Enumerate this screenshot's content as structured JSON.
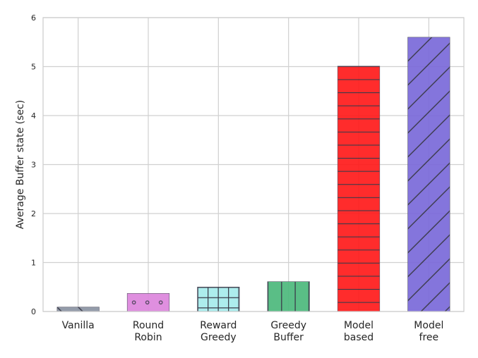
{
  "chart_data": {
    "type": "bar",
    "title": "",
    "xlabel": "",
    "ylabel": "Average Buffer state (sec)",
    "ylim": [
      0,
      6
    ],
    "yticks": [
      "0",
      "1",
      "2",
      "3",
      "4",
      "5",
      "6"
    ],
    "grid": true,
    "categories": [
      [
        "Vanilla"
      ],
      [
        "Round",
        "Robin"
      ],
      [
        "Reward",
        "Greedy"
      ],
      [
        "Greedy",
        "Buffer"
      ],
      [
        "Model",
        "based"
      ],
      [
        "Model",
        "free"
      ]
    ],
    "values": [
      0.09,
      0.37,
      0.5,
      0.61,
      5.01,
      5.6
    ],
    "colors": [
      "#8b94a3",
      "#dc86dc",
      "#a6ecec",
      "#4cb97c",
      "#ff1a1a",
      "#7a69d9"
    ],
    "hatches": [
      "backslash",
      "dots",
      "grid",
      "vertical",
      "horizontal",
      "slash"
    ]
  }
}
